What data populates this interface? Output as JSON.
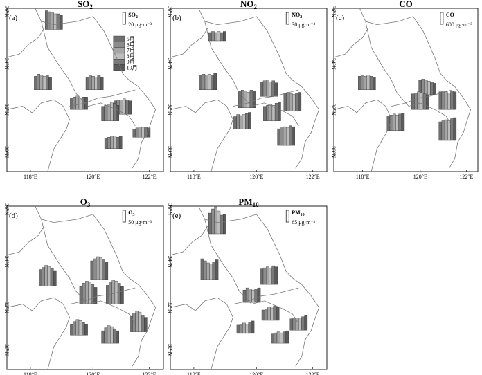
{
  "months": [
    "5月",
    "6月",
    "7月",
    "8月",
    "9月",
    "10月"
  ],
  "month_colors": [
    "#6f6f6f",
    "#8c8c8c",
    "#a6a6a6",
    "#bdbdbd",
    "#7a7a7a",
    "#5a5a5a"
  ],
  "axis": {
    "xticks": [
      "118°E",
      "120°E",
      "122°E"
    ],
    "yticks": [
      "36°N",
      "34°N",
      "32°N",
      "30°N"
    ]
  },
  "panels": [
    {
      "id": "a",
      "label": "(a)",
      "title_main": "SO",
      "title_sub": "2",
      "scale_main": "SO",
      "scale_sub": "2",
      "scale_value": "20 μg·m⁻³",
      "show_legend": true,
      "sites": [
        {
          "values": [
            18,
            17,
            16,
            15,
            15,
            14
          ]
        },
        {
          "values": [
            13,
            15,
            14,
            13,
            14,
            12
          ]
        },
        {
          "values": [
            12,
            14,
            13,
            12,
            14,
            12
          ]
        },
        {
          "values": [
            11,
            12,
            13,
            11,
            12,
            12
          ]
        },
        {
          "values": [
            13,
            14,
            14,
            15,
            14,
            13
          ]
        },
        {
          "values": [
            14,
            15,
            16,
            18,
            17,
            15
          ]
        },
        {
          "values": [
            10,
            11,
            12,
            12,
            11,
            12
          ]
        },
        {
          "values": [
            8,
            9,
            10,
            9,
            10,
            9
          ]
        }
      ]
    },
    {
      "id": "b",
      "label": "(b)",
      "title_main": "NO",
      "title_sub": "2",
      "scale_main": "NO",
      "scale_sub": "2",
      "scale_value": "30 μg·m⁻³",
      "show_legend": false,
      "sites": [
        {
          "values": [
            8,
            9,
            8,
            9,
            8,
            9
          ]
        },
        {
          "values": [
            14,
            15,
            14,
            15,
            14,
            16
          ]
        },
        {
          "values": [
            16,
            17,
            16,
            15,
            17,
            16
          ]
        },
        {
          "values": [
            14,
            15,
            16,
            14,
            15,
            13
          ]
        },
        {
          "values": [
            17,
            18,
            17,
            16,
            17,
            18
          ]
        },
        {
          "values": [
            14,
            15,
            16,
            15,
            17,
            18
          ]
        },
        {
          "values": [
            12,
            14,
            13,
            14,
            15,
            16
          ]
        },
        {
          "values": [
            16,
            17,
            18,
            17,
            19,
            18
          ]
        }
      ]
    },
    {
      "id": "c",
      "label": "(c)",
      "title_main": "CO",
      "title_sub": "",
      "scale_main": "CO",
      "scale_sub": "",
      "scale_value": "600 μg·m⁻³",
      "show_legend": false,
      "sites": [
        {
          "values": [
            13,
            14,
            13,
            14,
            13,
            12
          ]
        },
        {
          "values": [
            14,
            15,
            14,
            13,
            12,
            11
          ]
        },
        {
          "values": [
            15,
            16,
            17,
            16,
            15,
            14
          ]
        },
        {
          "values": [
            17,
            18,
            17,
            16,
            18,
            17
          ]
        },
        {
          "values": [
            14,
            15,
            16,
            15,
            16,
            17
          ]
        },
        {
          "values": [
            18,
            19,
            20,
            19,
            21,
            22
          ]
        }
      ]
    },
    {
      "id": "d",
      "label": "(d)",
      "title_main": "O",
      "title_sub": "3",
      "scale_main": "O",
      "scale_sub": "3",
      "scale_value": "50 μg·m⁻³",
      "show_legend": false,
      "sites": [
        {
          "values": [
            16,
            18,
            20,
            19,
            17,
            15
          ]
        },
        {
          "values": [
            18,
            20,
            22,
            21,
            19,
            17
          ]
        },
        {
          "values": [
            17,
            20,
            22,
            21,
            19,
            16
          ]
        },
        {
          "values": [
            18,
            21,
            23,
            22,
            20,
            17
          ]
        },
        {
          "values": [
            10,
            13,
            15,
            14,
            12,
            10
          ]
        },
        {
          "values": [
            15,
            18,
            20,
            19,
            16,
            14
          ]
        },
        {
          "values": [
            12,
            15,
            17,
            16,
            14,
            12
          ]
        }
      ]
    },
    {
      "id": "e",
      "label": "(e)",
      "title_main": "PM",
      "title_sub": "10",
      "scale_main": "PM",
      "scale_sub": "10",
      "scale_value": "65 μg·m⁻³",
      "show_legend": false,
      "sites": [
        {
          "values": [
            20,
            24,
            26,
            22,
            18,
            19
          ]
        },
        {
          "values": [
            20,
            18,
            16,
            15,
            17,
            19
          ]
        },
        {
          "values": [
            15,
            16,
            17,
            16,
            18,
            17
          ]
        },
        {
          "values": [
            12,
            14,
            13,
            12,
            13,
            14
          ]
        },
        {
          "values": [
            10,
            11,
            13,
            12,
            14,
            13
          ]
        },
        {
          "values": [
            11,
            12,
            11,
            12,
            13,
            14
          ]
        },
        {
          "values": [
            8,
            9,
            10,
            9,
            11,
            12
          ]
        },
        {
          "values": [
            9,
            10,
            11,
            10,
            11,
            12
          ]
        }
      ]
    }
  ]
}
